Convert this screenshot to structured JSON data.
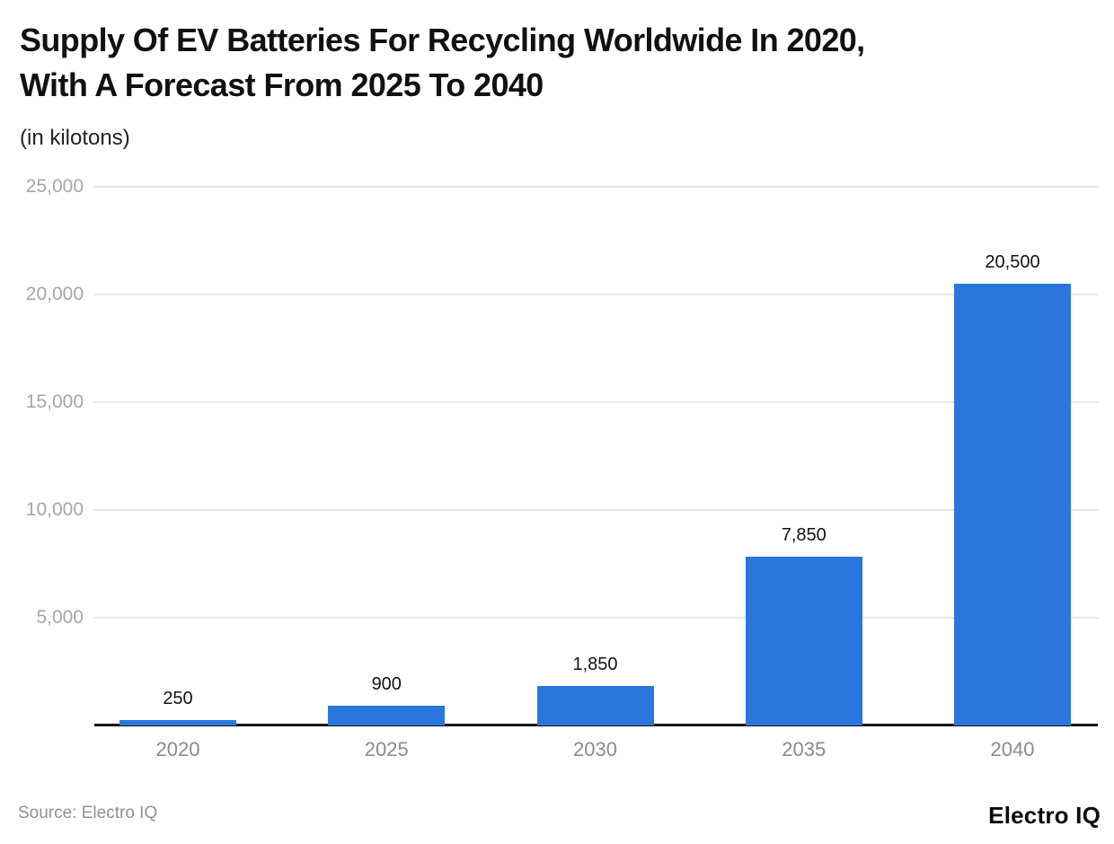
{
  "header": {
    "title": "Supply Of EV Batteries For Recycling Worldwide In 2020, With A Forecast From 2025 To 2040",
    "title_lines": [
      "Supply Of EV Batteries For Recycling Worldwide In 2020,",
      "With A Forecast From 2025 To 2040"
    ],
    "subtitle": "(in kilotons)"
  },
  "footer": {
    "source": "Source: Electro IQ",
    "brand": "Electro IQ"
  },
  "colors": {
    "bar": "#2a76dd",
    "grid": "#e7e7e7",
    "axis": "#161616",
    "value_label": "#111111",
    "y_tick": "#a6a6a6",
    "x_tick": "#8b8b8b",
    "title": "#111111",
    "source": "#909090"
  },
  "chart_data": {
    "type": "bar",
    "title": "Supply Of EV Batteries For Recycling Worldwide In 2020, With A Forecast From 2025 To 2040",
    "subtitle": "(in kilotons)",
    "unit": "kilotons",
    "categories": [
      "2020",
      "2025",
      "2030",
      "2035",
      "2040"
    ],
    "values": [
      250,
      900,
      1850,
      7850,
      20500
    ],
    "value_labels": [
      "250",
      "900",
      "1,850",
      "7,850",
      "20,500"
    ],
    "xlabel": "",
    "ylabel": "",
    "ylim": [
      0,
      25000
    ],
    "yticks": [
      5000,
      10000,
      15000,
      20000,
      25000
    ],
    "ytick_labels": [
      "5,000",
      "10,000",
      "15,000",
      "20,000",
      "25,000"
    ],
    "grid": true,
    "legend": false,
    "bar_color": "#2a76dd",
    "source": "Electro IQ"
  }
}
